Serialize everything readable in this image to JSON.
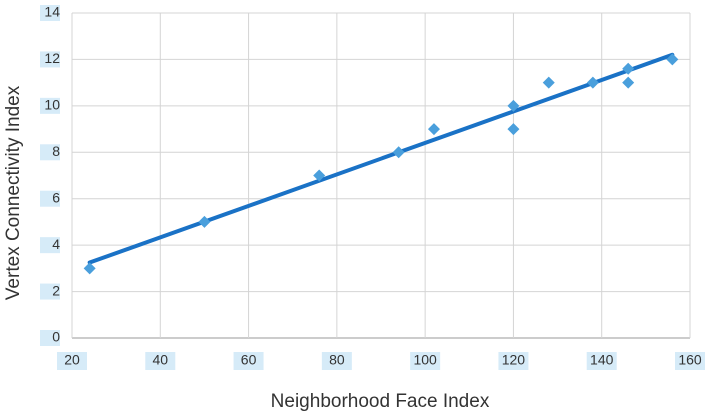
{
  "chart_data": {
    "type": "scatter",
    "x_label": "Neighborhood Face Index",
    "y_label": "Vertex Connectivity Index",
    "series": [
      {
        "color": "#4a9fdc",
        "x": [
          24,
          50,
          76,
          94,
          102,
          120,
          120,
          128,
          138,
          146,
          146,
          156
        ],
        "values": [
          3,
          5,
          7,
          8,
          9,
          10,
          9,
          11,
          11,
          11.6,
          11,
          12
        ]
      }
    ],
    "trendline": {
      "color": "#1a72c6",
      "x": [
        24,
        156
      ],
      "values": [
        3.25,
        12.2
      ]
    },
    "xlim": [
      20,
      160
    ],
    "xticks": [
      20,
      40,
      60,
      80,
      100,
      120,
      140,
      160
    ],
    "ylim": [
      0,
      14
    ],
    "yticks": [
      0,
      2,
      4,
      6,
      8,
      10,
      12,
      14
    ],
    "grid": true
  }
}
